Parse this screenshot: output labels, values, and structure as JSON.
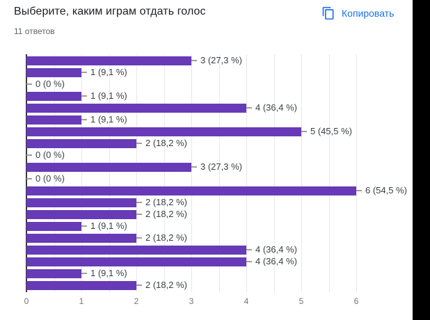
{
  "header": {
    "title": "Выберите, каким играм отдать голос",
    "responses_count": "11 ответов",
    "copy_button": {
      "label": "Копировать",
      "icon": "content-copy-icon",
      "color": "#1a73e8"
    }
  },
  "chart_data": {
    "type": "bar",
    "orientation": "horizontal",
    "title": "Выберите, каким играм отдать голос",
    "subtitle": "11 ответов",
    "total_responses": 11,
    "values": [
      3,
      1,
      0,
      1,
      4,
      1,
      5,
      2,
      0,
      3,
      0,
      6,
      2,
      2,
      1,
      2,
      4,
      4,
      1,
      2
    ],
    "bar_labels": [
      "3 (27,3 %)",
      "1 (9,1 %)",
      "0 (0 %)",
      "1 (9,1 %)",
      "4 (36,4 %)",
      "1 (9,1 %)",
      "5 (45,5 %)",
      "2 (18,2 %)",
      "0 (0 %)",
      "3 (27,3 %)",
      "0 (0 %)",
      "6 (54,5 %)",
      "2 (18,2 %)",
      "2 (18,2 %)",
      "1 (9,1 %)",
      "2 (18,2 %)",
      "4 (36,4 %)",
      "4 (36,4 %)",
      "1 (9,1 %)",
      "2 (18,2 %)"
    ],
    "x_ticks": [
      "0",
      "1",
      "2",
      "3",
      "4",
      "5",
      "6"
    ],
    "xlim": [
      0,
      6
    ],
    "gridline_step": 0.5,
    "grid": true,
    "legend": "none",
    "bar_color": "#673ab7"
  },
  "page": {
    "edge_strip_color": "#000000"
  }
}
